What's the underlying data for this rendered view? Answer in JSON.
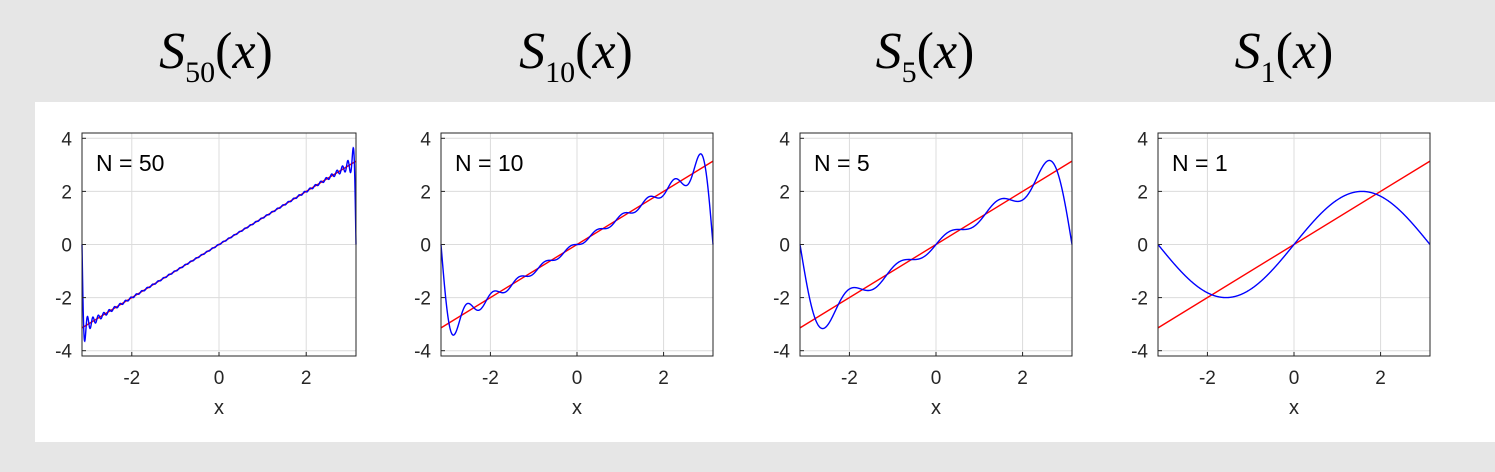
{
  "panel_titles": [
    {
      "fn": "S",
      "sub": "50",
      "arg": "x"
    },
    {
      "fn": "S",
      "sub": "10",
      "arg": "x"
    },
    {
      "fn": "S",
      "sub": "5",
      "arg": "x"
    },
    {
      "fn": "S",
      "sub": "1",
      "arg": "x"
    }
  ],
  "colors": {
    "fourier_series": "#0000ff",
    "target_line": "#ff0000",
    "grid": "#dcdcdc",
    "axes": "#262626"
  },
  "chart_data": [
    {
      "type": "line",
      "annotation": "N = 50",
      "N": 50,
      "xlabel": "x",
      "ylabel": "",
      "xlim": [
        -3.1416,
        3.1416
      ],
      "ylim": [
        -4.2,
        4.2
      ],
      "xticks": [
        -2,
        0,
        2
      ],
      "xtick_labels": [
        "-2",
        "0",
        "2"
      ],
      "yticks": [
        -4,
        -2,
        0,
        2,
        4
      ],
      "ytick_labels": [
        "-4",
        "-2",
        "0",
        "2",
        "4"
      ],
      "grid": true,
      "series": [
        {
          "function": "sum_{n=1}^{50} 2(-1)^{n+1} sin(n x)/n",
          "color": "blue"
        },
        {
          "function": "y = x",
          "color": "red"
        }
      ]
    },
    {
      "type": "line",
      "annotation": "N = 10",
      "N": 10,
      "xlabel": "x",
      "ylabel": "",
      "xlim": [
        -3.1416,
        3.1416
      ],
      "ylim": [
        -4.2,
        4.2
      ],
      "xticks": [
        -2,
        0,
        2
      ],
      "xtick_labels": [
        "-2",
        "0",
        "2"
      ],
      "yticks": [
        -4,
        -2,
        0,
        2,
        4
      ],
      "ytick_labels": [
        "-4",
        "-2",
        "0",
        "2",
        "4"
      ],
      "grid": true,
      "series": [
        {
          "function": "sum_{n=1}^{10} 2(-1)^{n+1} sin(n x)/n",
          "color": "blue"
        },
        {
          "function": "y = x",
          "color": "red"
        }
      ]
    },
    {
      "type": "line",
      "annotation": "N = 5",
      "N": 5,
      "xlabel": "x",
      "ylabel": "",
      "xlim": [
        -3.1416,
        3.1416
      ],
      "ylim": [
        -4.2,
        4.2
      ],
      "xticks": [
        -2,
        0,
        2
      ],
      "xtick_labels": [
        "-2",
        "0",
        "2"
      ],
      "yticks": [
        -4,
        -2,
        0,
        2,
        4
      ],
      "ytick_labels": [
        "-4",
        "-2",
        "0",
        "2",
        "4"
      ],
      "grid": true,
      "series": [
        {
          "function": "sum_{n=1}^{5} 2(-1)^{n+1} sin(n x)/n",
          "color": "blue"
        },
        {
          "function": "y = x",
          "color": "red"
        }
      ]
    },
    {
      "type": "line",
      "annotation": "N = 1",
      "N": 1,
      "xlabel": "x",
      "ylabel": "",
      "xlim": [
        -3.1416,
        3.1416
      ],
      "ylim": [
        -4.2,
        4.2
      ],
      "xticks": [
        -2,
        0,
        2
      ],
      "xtick_labels": [
        "-2",
        "0",
        "2"
      ],
      "yticks": [
        -4,
        -2,
        0,
        2,
        4
      ],
      "ytick_labels": [
        "-4",
        "-2",
        "0",
        "2",
        "4"
      ],
      "grid": true,
      "series": [
        {
          "function": "2 sin(x)",
          "color": "blue"
        },
        {
          "function": "y = x",
          "color": "red"
        }
      ]
    }
  ]
}
